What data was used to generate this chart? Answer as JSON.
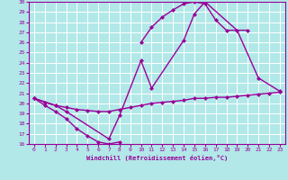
{
  "xlabel": "Windchill (Refroidissement éolien,°C)",
  "xlim": [
    -0.5,
    23.5
  ],
  "ylim": [
    16,
    30
  ],
  "yticks": [
    16,
    17,
    18,
    19,
    20,
    21,
    22,
    23,
    24,
    25,
    26,
    27,
    28,
    29,
    30
  ],
  "xticks": [
    0,
    1,
    2,
    3,
    4,
    5,
    6,
    7,
    8,
    9,
    10,
    11,
    12,
    13,
    14,
    15,
    16,
    17,
    18,
    19,
    20,
    21,
    22,
    23
  ],
  "bg_color": "#b2e8e8",
  "grid_color": "#ffffff",
  "line_color": "#990099",
  "curve1_x": [
    0,
    1,
    2,
    3,
    4,
    5,
    6,
    7,
    8
  ],
  "curve1_y": [
    20.5,
    19.8,
    19.2,
    18.5,
    17.5,
    16.8,
    16.2,
    16.0,
    16.2
  ],
  "curve2_x": [
    0,
    1,
    2,
    3,
    4,
    5,
    6,
    7,
    8,
    9,
    10,
    11,
    12,
    13,
    14,
    15,
    16,
    17,
    18,
    19,
    20,
    21,
    22,
    23
  ],
  "curve2_y": [
    20.5,
    20.1,
    19.8,
    19.6,
    19.4,
    19.3,
    19.2,
    19.2,
    19.4,
    19.6,
    19.8,
    20.0,
    20.1,
    20.2,
    20.3,
    20.5,
    20.5,
    20.6,
    20.6,
    20.7,
    20.8,
    20.9,
    21.0,
    21.1
  ],
  "curve3_x": [
    0,
    2,
    3,
    7,
    8,
    10,
    11,
    14,
    15,
    16,
    19,
    21,
    23
  ],
  "curve3_y": [
    20.5,
    19.8,
    19.2,
    16.5,
    18.8,
    24.2,
    21.5,
    26.2,
    28.8,
    30.0,
    27.2,
    22.5,
    21.2
  ],
  "curve4_x": [
    10,
    11,
    12,
    13,
    14,
    15,
    16,
    17,
    18,
    20
  ],
  "curve4_y": [
    26.0,
    27.5,
    28.5,
    29.2,
    29.8,
    30.0,
    29.8,
    28.2,
    27.2,
    27.2
  ]
}
